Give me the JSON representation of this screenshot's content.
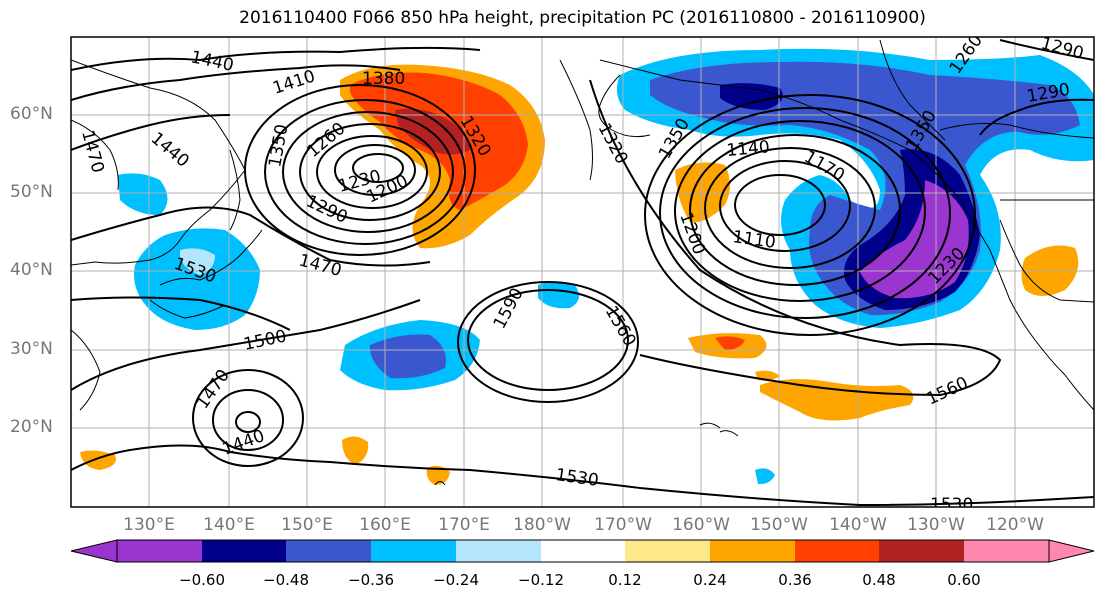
{
  "title": "2016110400 F066 850 hPa height, precipitation PC (2016110800 - 2016110900)",
  "map": {
    "projection": "equirectangular, Pacific-centred",
    "lat_labels": [
      "60°N",
      "50°N",
      "40°N",
      "30°N",
      "20°N"
    ],
    "lon_labels": [
      "130°E",
      "140°E",
      "150°E",
      "160°E",
      "170°E",
      "180°W",
      "170°W",
      "160°W",
      "150°W",
      "140°W",
      "130°W",
      "120°W"
    ],
    "contour_labels": [
      "1440",
      "1410",
      "1380",
      "1350",
      "1260",
      "1320",
      "1320",
      "1470",
      "1440",
      "1290",
      "1230",
      "1200",
      "1470",
      "1530",
      "1500",
      "1470",
      "1440",
      "1590",
      "1560",
      "1530",
      "1530",
      "1560",
      "1140",
      "1170",
      "1110",
      "1200",
      "1230",
      "1260",
      "1290",
      "1290",
      "1350",
      "1350"
    ]
  },
  "colorbar": {
    "labels": [
      "−0.60",
      "−0.48",
      "−0.36",
      "−0.24",
      "−0.12",
      "0.12",
      "0.24",
      "0.36",
      "0.48",
      "0.60"
    ],
    "colors": [
      "#9a35d0",
      "#00008b",
      "#3a57d0",
      "#00bfff",
      "#b3e5fc",
      "#ffffff",
      "#ffe88a",
      "#ffa500",
      "#ff4000",
      "#b22222",
      "#ff88b0"
    ]
  }
}
